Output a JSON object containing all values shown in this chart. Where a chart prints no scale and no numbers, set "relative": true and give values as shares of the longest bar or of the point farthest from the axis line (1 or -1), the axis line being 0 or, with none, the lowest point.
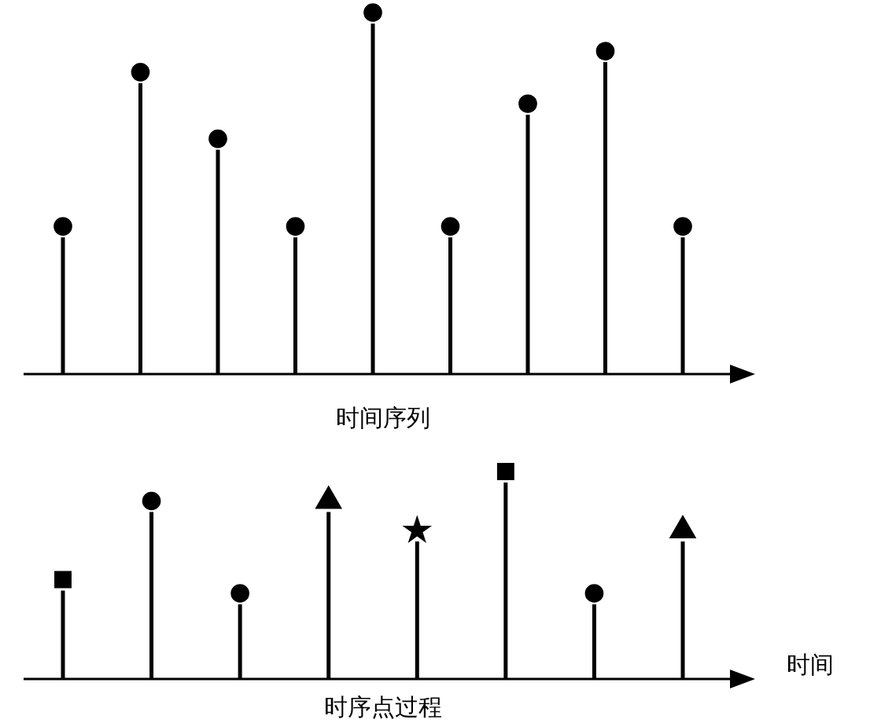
{
  "chart_data": [
    {
      "type": "bar",
      "title": "时间序列",
      "relative": true,
      "marker": "circle",
      "categories": [
        null,
        null,
        null,
        null,
        null,
        null,
        null,
        null,
        null
      ],
      "series": [
        {
          "color": "#000000",
          "values": [
            0.39,
            0.83,
            0.64,
            0.39,
            1,
            0.39,
            0.74,
            0.89,
            0.39
          ]
        }
      ]
    },
    {
      "type": "bar",
      "title": "时序点过程",
      "xlabel": "时间",
      "relative": true,
      "categories": [
        null,
        null,
        null,
        null,
        null,
        null,
        null,
        null
      ],
      "series": [
        {
          "color": "#000000",
          "marker": [
            "square",
            "circle",
            "circle",
            "triangle",
            "star",
            "square",
            "circle",
            "triangle"
          ],
          "values": [
            0.45,
            0.85,
            0.38,
            0.85,
            0.7,
            1,
            0.38,
            0.7
          ]
        }
      ]
    }
  ]
}
